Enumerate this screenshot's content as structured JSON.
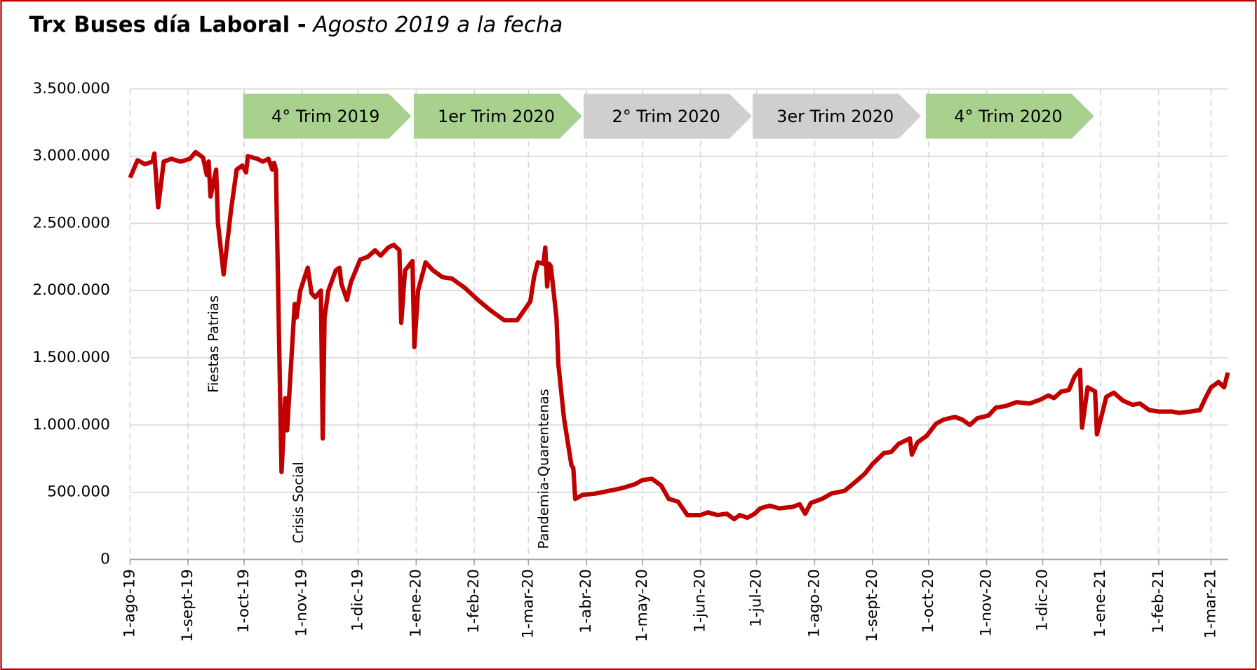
{
  "chart_data": {
    "type": "line",
    "title": {
      "main": "Trx Buses día Laboral -",
      "sub": "Agosto 2019 a la fecha"
    },
    "x": [
      "2019-08-01",
      "2019-08-05",
      "2019-08-09",
      "2019-08-13",
      "2019-08-14",
      "2019-08-16",
      "2019-08-19",
      "2019-08-23",
      "2019-08-28",
      "2019-09-02",
      "2019-09-05",
      "2019-09-09",
      "2019-09-11",
      "2019-09-12",
      "2019-09-13",
      "2019-09-16",
      "2019-09-17",
      "2019-09-20",
      "2019-09-24",
      "2019-09-27",
      "2019-09-30",
      "2019-10-02",
      "2019-10-03",
      "2019-10-08",
      "2019-10-11",
      "2019-10-14",
      "2019-10-16",
      "2019-10-17",
      "2019-10-18",
      "2019-10-21",
      "2019-10-23",
      "2019-10-24",
      "2019-10-28",
      "2019-10-29",
      "2019-10-31",
      "2019-11-04",
      "2019-11-06",
      "2019-11-08",
      "2019-11-11",
      "2019-11-12",
      "2019-11-13",
      "2019-11-15",
      "2019-11-19",
      "2019-11-21",
      "2019-11-22",
      "2019-11-25",
      "2019-11-27",
      "2019-12-02",
      "2019-12-06",
      "2019-12-10",
      "2019-12-13",
      "2019-12-17",
      "2019-12-20",
      "2019-12-23",
      "2019-12-24",
      "2019-12-26",
      "2019-12-30",
      "2019-12-31",
      "2020-01-02",
      "2020-01-06",
      "2020-01-10",
      "2020-01-15",
      "2020-01-20",
      "2020-01-27",
      "2020-02-03",
      "2020-02-10",
      "2020-02-17",
      "2020-02-24",
      "2020-03-02",
      "2020-03-04",
      "2020-03-06",
      "2020-03-09",
      "2020-03-10",
      "2020-03-11",
      "2020-03-12",
      "2020-03-13",
      "2020-03-16",
      "2020-03-17",
      "2020-03-20",
      "2020-03-24",
      "2020-03-25",
      "2020-03-26",
      "2020-03-30",
      "2020-04-06",
      "2020-04-13",
      "2020-04-20",
      "2020-04-27",
      "2020-05-01",
      "2020-05-06",
      "2020-05-11",
      "2020-05-15",
      "2020-05-20",
      "2020-05-25",
      "2020-06-01",
      "2020-06-05",
      "2020-06-10",
      "2020-06-15",
      "2020-06-19",
      "2020-06-22",
      "2020-06-26",
      "2020-06-30",
      "2020-07-03",
      "2020-07-08",
      "2020-07-13",
      "2020-07-20",
      "2020-07-24",
      "2020-07-27",
      "2020-07-30",
      "2020-08-05",
      "2020-08-10",
      "2020-08-17",
      "2020-08-24",
      "2020-08-28",
      "2020-09-01",
      "2020-09-07",
      "2020-09-11",
      "2020-09-15",
      "2020-09-21",
      "2020-09-22",
      "2020-09-25",
      "2020-09-30",
      "2020-10-05",
      "2020-10-09",
      "2020-10-15",
      "2020-10-19",
      "2020-10-23",
      "2020-10-27",
      "2020-11-02",
      "2020-11-06",
      "2020-11-11",
      "2020-11-17",
      "2020-11-24",
      "2020-11-30",
      "2020-12-04",
      "2020-12-07",
      "2020-12-11",
      "2020-12-15",
      "2020-12-18",
      "2020-12-21",
      "2020-12-22",
      "2020-12-25",
      "2020-12-29",
      "2020-12-30",
      "2021-01-04",
      "2021-01-08",
      "2021-01-13",
      "2021-01-18",
      "2021-01-22",
      "2021-01-27",
      "2021-02-01",
      "2021-02-08",
      "2021-02-12",
      "2021-02-18",
      "2021-02-23",
      "2021-02-26",
      "2021-03-01",
      "2021-03-03",
      "2021-03-05",
      "2021-03-08",
      "2021-03-10"
    ],
    "series": [
      {
        "name": "Trx Buses",
        "color": "#c00000",
        "values": [
          2840000,
          2970000,
          2940000,
          2960000,
          3020000,
          2620000,
          2960000,
          2980000,
          2960000,
          2980000,
          3030000,
          2990000,
          2860000,
          2960000,
          2700000,
          2900000,
          2500000,
          2120000,
          2600000,
          2900000,
          2930000,
          2880000,
          3000000,
          2980000,
          2960000,
          2980000,
          2900000,
          2950000,
          2900000,
          650000,
          1200000,
          960000,
          1900000,
          1800000,
          2000000,
          2170000,
          1980000,
          1950000,
          2000000,
          900000,
          1800000,
          2000000,
          2150000,
          2170000,
          2050000,
          1930000,
          2060000,
          2230000,
          2250000,
          2300000,
          2260000,
          2320000,
          2340000,
          2300000,
          1760000,
          2150000,
          2220000,
          1580000,
          2000000,
          2210000,
          2150000,
          2100000,
          2090000,
          2020000,
          1930000,
          1850000,
          1780000,
          1780000,
          1920000,
          2100000,
          2210000,
          2200000,
          2320000,
          2030000,
          2200000,
          2180000,
          1800000,
          1450000,
          1050000,
          700000,
          680000,
          450000,
          480000,
          490000,
          510000,
          530000,
          560000,
          590000,
          600000,
          550000,
          450000,
          430000,
          330000,
          330000,
          350000,
          330000,
          340000,
          300000,
          330000,
          310000,
          340000,
          380000,
          400000,
          380000,
          390000,
          410000,
          340000,
          420000,
          450000,
          490000,
          510000,
          590000,
          640000,
          710000,
          790000,
          800000,
          860000,
          900000,
          780000,
          870000,
          920000,
          1010000,
          1040000,
          1060000,
          1040000,
          1000000,
          1050000,
          1070000,
          1130000,
          1140000,
          1170000,
          1160000,
          1190000,
          1220000,
          1200000,
          1250000,
          1260000,
          1360000,
          1410000,
          980000,
          1280000,
          1250000,
          930000,
          1210000,
          1240000,
          1180000,
          1150000,
          1160000,
          1110000,
          1100000,
          1100000,
          1090000,
          1100000,
          1110000,
          1200000,
          1280000,
          1300000,
          1320000,
          1280000,
          1390000
        ]
      }
    ],
    "xlim": [
      "2019-08-01",
      "2021-03-10"
    ],
    "xticks": [
      {
        "value": "2019-08-01",
        "label": "1-ago-19"
      },
      {
        "value": "2019-09-01",
        "label": "1-sept-19"
      },
      {
        "value": "2019-10-01",
        "label": "1-oct-19"
      },
      {
        "value": "2019-11-01",
        "label": "1-nov-19"
      },
      {
        "value": "2019-12-01",
        "label": "1-dic-19"
      },
      {
        "value": "2020-01-01",
        "label": "1-ene-20"
      },
      {
        "value": "2020-02-01",
        "label": "1-feb-20"
      },
      {
        "value": "2020-03-01",
        "label": "1-mar-20"
      },
      {
        "value": "2020-04-01",
        "label": "1-abr-20"
      },
      {
        "value": "2020-05-01",
        "label": "1-may-20"
      },
      {
        "value": "2020-06-01",
        "label": "1-jun-20"
      },
      {
        "value": "2020-07-01",
        "label": "1-jul-20"
      },
      {
        "value": "2020-08-01",
        "label": "1-ago-20"
      },
      {
        "value": "2020-09-01",
        "label": "1-sept-20"
      },
      {
        "value": "2020-10-01",
        "label": "1-oct-20"
      },
      {
        "value": "2020-11-01",
        "label": "1-nov-20"
      },
      {
        "value": "2020-12-01",
        "label": "1-dic-20"
      },
      {
        "value": "2021-01-01",
        "label": "1-ene-21"
      },
      {
        "value": "2021-02-01",
        "label": "1-feb-21"
      },
      {
        "value": "2021-03-01",
        "label": "1-mar-21"
      }
    ],
    "ylim": [
      0,
      3500000
    ],
    "yticks": [
      0,
      {
        "value": 500000,
        "label": "500.000"
      },
      {
        "value": 1000000,
        "label": "1.000.000"
      },
      {
        "value": 1500000,
        "label": "1.500.000"
      },
      {
        "value": 2000000,
        "label": "2.000.000"
      },
      {
        "value": 2500000,
        "label": "2.500.000"
      },
      {
        "value": 3000000,
        "label": "3.000.000"
      },
      {
        "value": 3500000,
        "label": "3.500.000"
      }
    ],
    "grid": true,
    "periods": [
      {
        "label": "4° Trim 2019",
        "color": "#a9d18e"
      },
      {
        "label": "1er Trim 2020",
        "color": "#a9d18e"
      },
      {
        "label": "2° Trim 2020",
        "color": "#d0cece"
      },
      {
        "label": "3er Trim 2020",
        "color": "#d0cece"
      },
      {
        "label": "4° Trim 2020",
        "color": "#a9d18e"
      }
    ],
    "annotations": [
      "Fiestas Patrias",
      "Crisis Social",
      "Pandemia-Quarentenas"
    ]
  }
}
